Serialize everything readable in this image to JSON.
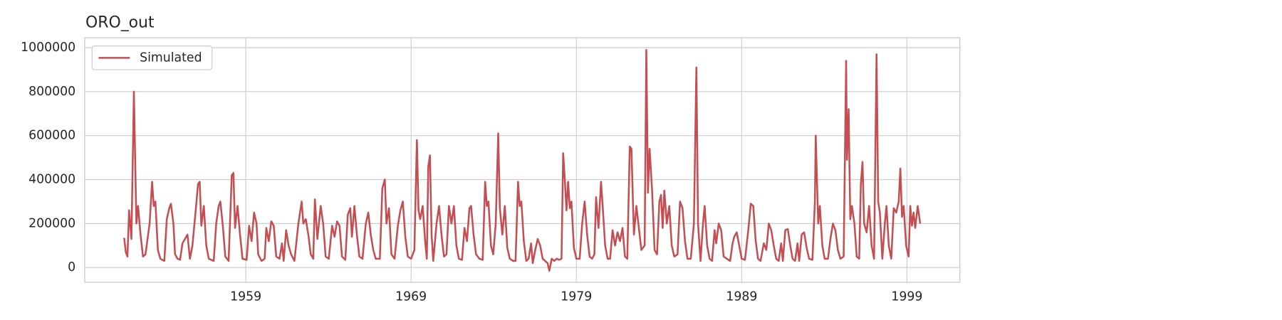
{
  "chart_data": {
    "type": "line",
    "title": "ORO_out",
    "x": [
      1951.64,
      1951.74,
      1951.84,
      1951.94,
      1952.08,
      1952.23,
      1952.38,
      1952.48,
      1952.63,
      1952.78,
      1952.93,
      1953.18,
      1953.33,
      1953.43,
      1953.53,
      1953.68,
      1953.83,
      1954.07,
      1954.22,
      1954.37,
      1954.47,
      1954.62,
      1954.72,
      1954.87,
      1955.02,
      1955.17,
      1955.32,
      1955.47,
      1955.62,
      1955.77,
      1955.97,
      1956.11,
      1956.21,
      1956.31,
      1956.46,
      1956.61,
      1956.76,
      1957.06,
      1957.21,
      1957.36,
      1957.46,
      1957.61,
      1957.76,
      1957.96,
      1958.15,
      1958.25,
      1958.35,
      1958.5,
      1958.65,
      1958.8,
      1959.05,
      1959.2,
      1959.35,
      1959.5,
      1959.65,
      1959.75,
      1959.95,
      1960.14,
      1960.24,
      1960.39,
      1960.54,
      1960.69,
      1960.84,
      1961.04,
      1961.19,
      1961.29,
      1961.44,
      1961.59,
      1961.74,
      1961.94,
      1962.18,
      1962.38,
      1962.48,
      1962.63,
      1962.78,
      1962.93,
      1963.08,
      1963.18,
      1963.33,
      1963.53,
      1963.68,
      1963.83,
      1964.02,
      1964.22,
      1964.37,
      1964.52,
      1964.67,
      1964.82,
      1965.02,
      1965.17,
      1965.32,
      1965.42,
      1965.57,
      1965.72,
      1965.87,
      1966.06,
      1966.26,
      1966.41,
      1966.56,
      1966.71,
      1966.86,
      1967.11,
      1967.26,
      1967.41,
      1967.51,
      1967.66,
      1967.81,
      1968.0,
      1968.2,
      1968.35,
      1968.5,
      1968.65,
      1968.8,
      1969.0,
      1969.2,
      1969.35,
      1969.45,
      1969.55,
      1969.7,
      1969.85,
      1969.95,
      1970.04,
      1970.14,
      1970.24,
      1970.34,
      1970.54,
      1970.69,
      1970.84,
      1970.99,
      1971.14,
      1971.29,
      1971.44,
      1971.59,
      1971.74,
      1971.89,
      1972.08,
      1972.23,
      1972.38,
      1972.53,
      1972.63,
      1972.78,
      1972.93,
      1973.13,
      1973.33,
      1973.48,
      1973.58,
      1973.68,
      1973.83,
      1973.97,
      1974.12,
      1974.27,
      1974.37,
      1974.52,
      1974.67,
      1974.82,
      1974.97,
      1975.17,
      1975.32,
      1975.47,
      1975.57,
      1975.67,
      1975.82,
      1975.97,
      1976.11,
      1976.26,
      1976.36,
      1976.51,
      1976.66,
      1976.81,
      1976.96,
      1977.11,
      1977.26,
      1977.36,
      1977.51,
      1977.66,
      1977.81,
      1977.96,
      1978.1,
      1978.2,
      1978.3,
      1978.4,
      1978.5,
      1978.6,
      1978.7,
      1978.85,
      1979.0,
      1979.2,
      1979.35,
      1979.5,
      1979.65,
      1979.8,
      1979.95,
      1980.09,
      1980.19,
      1980.34,
      1980.49,
      1980.59,
      1980.74,
      1980.89,
      1981.04,
      1981.19,
      1981.34,
      1981.49,
      1981.64,
      1981.79,
      1981.94,
      1982.08,
      1982.23,
      1982.33,
      1982.48,
      1982.63,
      1982.78,
      1982.93,
      1983.13,
      1983.23,
      1983.33,
      1983.43,
      1983.58,
      1983.73,
      1983.88,
      1984.02,
      1984.12,
      1984.22,
      1984.32,
      1984.47,
      1984.62,
      1984.77,
      1984.92,
      1985.12,
      1985.27,
      1985.42,
      1985.57,
      1985.72,
      1985.92,
      1986.11,
      1986.26,
      1986.36,
      1986.51,
      1986.66,
      1986.76,
      1986.91,
      1987.06,
      1987.21,
      1987.36,
      1987.46,
      1987.61,
      1987.76,
      1987.91,
      1988.1,
      1988.3,
      1988.45,
      1988.55,
      1988.7,
      1988.85,
      1989.0,
      1989.2,
      1989.4,
      1989.55,
      1989.7,
      1989.85,
      1989.99,
      1990.14,
      1990.34,
      1990.49,
      1990.64,
      1990.79,
      1990.94,
      1991.09,
      1991.24,
      1991.39,
      1991.49,
      1991.64,
      1991.79,
      1991.94,
      1992.08,
      1992.23,
      1992.38,
      1992.48,
      1992.63,
      1992.78,
      1992.93,
      1993.08,
      1993.28,
      1993.43,
      1993.48,
      1993.63,
      1993.73,
      1993.88,
      1994.02,
      1994.22,
      1994.37,
      1994.52,
      1994.67,
      1994.82,
      1994.97,
      1995.17,
      1995.32,
      1995.37,
      1995.47,
      1995.57,
      1995.67,
      1995.82,
      1995.96,
      1996.11,
      1996.21,
      1996.31,
      1996.41,
      1996.56,
      1996.71,
      1996.86,
      1997.01,
      1997.16,
      1997.26,
      1997.36,
      1997.51,
      1997.66,
      1997.76,
      1997.9,
      1998.05,
      1998.2,
      1998.35,
      1998.5,
      1998.6,
      1998.7,
      1998.8,
      1998.95,
      1999.1,
      1999.2,
      1999.3,
      1999.4,
      1999.5,
      1999.65,
      1999.8
    ],
    "series": [
      {
        "name": "Simulated",
        "color": "#c44e52",
        "values": [
          135000,
          70000,
          50000,
          260000,
          130000,
          800000,
          200000,
          280000,
          150000,
          50000,
          60000,
          200000,
          390000,
          280000,
          300000,
          80000,
          40000,
          30000,
          220000,
          270000,
          290000,
          200000,
          60000,
          40000,
          35000,
          110000,
          130000,
          150000,
          40000,
          100000,
          260000,
          380000,
          390000,
          190000,
          280000,
          100000,
          40000,
          30000,
          200000,
          280000,
          300000,
          190000,
          50000,
          30000,
          420000,
          430000,
          180000,
          280000,
          150000,
          40000,
          35000,
          190000,
          120000,
          250000,
          200000,
          60000,
          30000,
          40000,
          180000,
          120000,
          210000,
          190000,
          50000,
          40000,
          110000,
          30000,
          170000,
          100000,
          60000,
          30000,
          200000,
          300000,
          200000,
          220000,
          150000,
          60000,
          40000,
          310000,
          130000,
          280000,
          200000,
          50000,
          40000,
          190000,
          140000,
          210000,
          190000,
          50000,
          35000,
          240000,
          270000,
          140000,
          280000,
          150000,
          50000,
          40000,
          200000,
          250000,
          150000,
          80000,
          40000,
          40000,
          360000,
          400000,
          200000,
          270000,
          60000,
          40000,
          190000,
          260000,
          300000,
          140000,
          50000,
          40000,
          80000,
          580000,
          260000,
          220000,
          280000,
          120000,
          40000,
          460000,
          510000,
          150000,
          30000,
          200000,
          280000,
          150000,
          50000,
          60000,
          280000,
          200000,
          280000,
          100000,
          40000,
          35000,
          180000,
          120000,
          270000,
          280000,
          150000,
          60000,
          40000,
          35000,
          390000,
          280000,
          300000,
          100000,
          60000,
          200000,
          610000,
          270000,
          150000,
          280000,
          90000,
          40000,
          30000,
          30000,
          390000,
          280000,
          300000,
          120000,
          30000,
          40000,
          110000,
          20000,
          80000,
          130000,
          100000,
          40000,
          30000,
          20000,
          -15000,
          40000,
          30000,
          40000,
          35000,
          40000,
          520000,
          400000,
          260000,
          390000,
          270000,
          300000,
          90000,
          40000,
          40000,
          200000,
          300000,
          150000,
          50000,
          40000,
          60000,
          320000,
          180000,
          390000,
          280000,
          100000,
          40000,
          40000,
          170000,
          100000,
          160000,
          120000,
          180000,
          50000,
          40000,
          550000,
          540000,
          150000,
          280000,
          180000,
          80000,
          100000,
          990000,
          340000,
          540000,
          350000,
          80000,
          60000,
          300000,
          330000,
          180000,
          350000,
          200000,
          280000,
          100000,
          50000,
          60000,
          300000,
          270000,
          120000,
          40000,
          40000,
          200000,
          910000,
          200000,
          30000,
          200000,
          280000,
          100000,
          40000,
          30000,
          170000,
          110000,
          200000,
          170000,
          50000,
          40000,
          30000,
          110000,
          140000,
          160000,
          100000,
          40000,
          35000,
          170000,
          290000,
          280000,
          120000,
          40000,
          30000,
          110000,
          80000,
          200000,
          170000,
          100000,
          40000,
          30000,
          110000,
          30000,
          170000,
          175000,
          100000,
          40000,
          30000,
          110000,
          30000,
          150000,
          160000,
          90000,
          40000,
          35000,
          300000,
          600000,
          200000,
          280000,
          100000,
          40000,
          40000,
          130000,
          200000,
          170000,
          80000,
          40000,
          50000,
          940000,
          490000,
          720000,
          220000,
          280000,
          200000,
          50000,
          40000,
          380000,
          480000,
          200000,
          160000,
          280000,
          100000,
          40000,
          970000,
          300000,
          250000,
          40000,
          200000,
          280000,
          100000,
          40000,
          270000,
          250000,
          300000,
          450000,
          230000,
          280000,
          100000,
          50000,
          280000,
          190000,
          250000,
          180000,
          280000,
          200000
        ]
      }
    ],
    "xlim": [
      1949.25,
      2002.2
    ],
    "xticks": [
      1959,
      1969,
      1979,
      1989,
      1999
    ],
    "ylim": [
      -67000,
      1045000
    ],
    "yticks": [
      0,
      200000,
      400000,
      600000,
      800000,
      1000000
    ],
    "grid": true,
    "legend": "upper-left"
  }
}
